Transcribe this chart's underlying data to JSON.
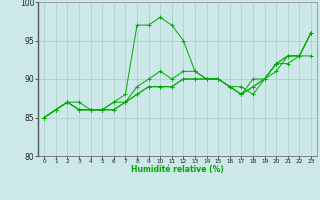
{
  "xlabel": "Humidité relative (%)",
  "background_color": "#cce8e8",
  "grid_color": "#aacccc",
  "line_color": "#00aa00",
  "xlim": [
    -0.5,
    23.5
  ],
  "ylim": [
    80,
    100
  ],
  "yticks": [
    80,
    85,
    90,
    95,
    100
  ],
  "xticks": [
    0,
    1,
    2,
    3,
    4,
    5,
    6,
    7,
    8,
    9,
    10,
    11,
    12,
    13,
    14,
    15,
    16,
    17,
    18,
    19,
    20,
    21,
    22,
    23
  ],
  "series": [
    {
      "x": [
        0,
        1,
        2,
        3,
        4,
        5,
        6,
        7,
        8,
        9,
        10,
        11,
        12,
        13,
        14,
        15,
        16,
        17,
        18,
        19,
        20,
        21,
        22,
        23
      ],
      "y": [
        85,
        86,
        87,
        87,
        86,
        86,
        87,
        88,
        97,
        97,
        98,
        97,
        95,
        91,
        90,
        90,
        89,
        89,
        88,
        90,
        92,
        93,
        93,
        96
      ]
    },
    {
      "x": [
        0,
        1,
        2,
        3,
        4,
        5,
        6,
        7,
        8,
        9,
        10,
        11,
        12,
        13,
        14,
        15,
        16,
        17,
        18,
        19,
        20,
        21,
        22,
        23
      ],
      "y": [
        85,
        86,
        87,
        86,
        86,
        86,
        86,
        87,
        88,
        89,
        89,
        89,
        90,
        90,
        90,
        90,
        89,
        88,
        90,
        90,
        92,
        93,
        93,
        93
      ]
    },
    {
      "x": [
        0,
        1,
        2,
        3,
        4,
        5,
        6,
        7,
        8,
        9,
        10,
        11,
        12,
        13,
        14,
        15,
        16,
        17,
        18,
        19,
        20,
        21,
        22,
        23
      ],
      "y": [
        85,
        86,
        87,
        86,
        86,
        86,
        86,
        87,
        88,
        89,
        89,
        89,
        90,
        90,
        90,
        90,
        89,
        88,
        89,
        90,
        92,
        92,
        93,
        96
      ]
    },
    {
      "x": [
        0,
        1,
        2,
        3,
        4,
        5,
        6,
        7,
        8,
        9,
        10,
        11,
        12,
        13,
        14,
        15,
        16,
        17,
        18,
        19,
        20,
        21,
        22,
        23
      ],
      "y": [
        85,
        86,
        87,
        86,
        86,
        86,
        87,
        87,
        89,
        90,
        91,
        90,
        91,
        91,
        90,
        90,
        89,
        88,
        89,
        90,
        91,
        93,
        93,
        96
      ]
    }
  ]
}
